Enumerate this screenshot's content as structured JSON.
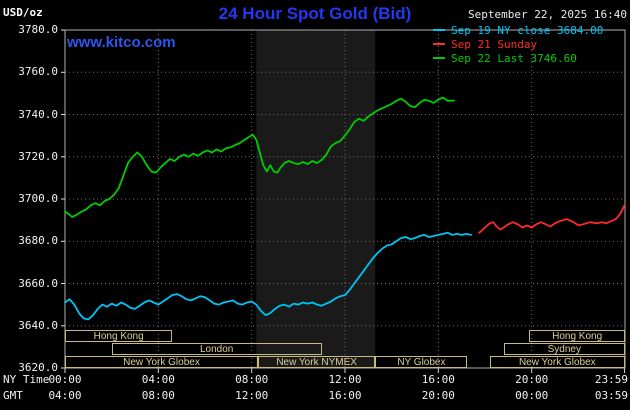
{
  "header": {
    "unit": "USD/oz",
    "title": "24 Hour Spot Gold (Bid)",
    "datetime": "September 22, 2025 16:40",
    "watermark": "www.kitco.com"
  },
  "axis": {
    "ny_label": "NY Time",
    "gmt_label": "GMT",
    "ny_ticks": [
      {
        "hour": 0,
        "label": "00:00"
      },
      {
        "hour": 4,
        "label": "04:00"
      },
      {
        "hour": 8,
        "label": "08:00"
      },
      {
        "hour": 12,
        "label": "12:00"
      },
      {
        "hour": 16,
        "label": "16:00"
      },
      {
        "hour": 20,
        "label": "20:00"
      },
      {
        "hour": 23.983,
        "label": "23:59"
      }
    ],
    "gmt_ticks": [
      {
        "hour": 0,
        "label": "04:00"
      },
      {
        "hour": 4,
        "label": "08:00"
      },
      {
        "hour": 8,
        "label": "12:00"
      },
      {
        "hour": 12,
        "label": "16:00"
      },
      {
        "hour": 16,
        "label": "20:00"
      },
      {
        "hour": 20,
        "label": "00:00"
      },
      {
        "hour": 23.983,
        "label": "03:59"
      }
    ]
  },
  "chart_data": {
    "type": "line",
    "title": "24 Hour Spot Gold (Bid)",
    "ylabel": "USD/oz",
    "xlabel": "NY Time (hours, 00:00-23:59)",
    "ylim": [
      3620,
      3780
    ],
    "ytick_step": 20,
    "yticks": [
      "3780.0",
      "3760.0",
      "3740.0",
      "3720.0",
      "3700.0",
      "3680.0",
      "3660.0",
      "3640.0",
      "3620.0"
    ],
    "grid": true,
    "grid_color": "#6e6e6e",
    "border_color": "#b0b0b0",
    "legend_position": "top-right",
    "background_band": {
      "start_hour": 8.2,
      "end_hour": 13.3,
      "color": "#1a1a1a"
    },
    "series": [
      {
        "id": "sep19",
        "name": "Sep 19 NY close 3684.00",
        "color": "#00c4f4",
        "points": [
          [
            0,
            3651
          ],
          [
            0.2,
            3652.5
          ],
          [
            0.4,
            3650
          ],
          [
            0.6,
            3646
          ],
          [
            0.8,
            3643.5
          ],
          [
            1,
            3643
          ],
          [
            1.2,
            3645
          ],
          [
            1.4,
            3648
          ],
          [
            1.6,
            3650
          ],
          [
            1.8,
            3649
          ],
          [
            2,
            3650.5
          ],
          [
            2.2,
            3649.5
          ],
          [
            2.4,
            3651
          ],
          [
            2.6,
            3650
          ],
          [
            2.8,
            3648.5
          ],
          [
            3,
            3648
          ],
          [
            3.2,
            3649.5
          ],
          [
            3.4,
            3651
          ],
          [
            3.6,
            3652
          ],
          [
            3.8,
            3651
          ],
          [
            4,
            3650
          ],
          [
            4.2,
            3651.5
          ],
          [
            4.4,
            3653
          ],
          [
            4.6,
            3654.5
          ],
          [
            4.8,
            3655
          ],
          [
            5,
            3654
          ],
          [
            5.2,
            3652.5
          ],
          [
            5.4,
            3652
          ],
          [
            5.6,
            3653
          ],
          [
            5.8,
            3654
          ],
          [
            6,
            3653.5
          ],
          [
            6.2,
            3652
          ],
          [
            6.4,
            3650.5
          ],
          [
            6.6,
            3650
          ],
          [
            6.8,
            3651
          ],
          [
            7,
            3651.5
          ],
          [
            7.2,
            3652
          ],
          [
            7.4,
            3650.5
          ],
          [
            7.6,
            3650
          ],
          [
            7.8,
            3651
          ],
          [
            8,
            3651.5
          ],
          [
            8.2,
            3650
          ],
          [
            8.4,
            3647
          ],
          [
            8.6,
            3645
          ],
          [
            8.8,
            3646
          ],
          [
            9,
            3648
          ],
          [
            9.2,
            3649.5
          ],
          [
            9.4,
            3650
          ],
          [
            9.6,
            3649
          ],
          [
            9.8,
            3650.5
          ],
          [
            10,
            3650
          ],
          [
            10.2,
            3651
          ],
          [
            10.4,
            3650.5
          ],
          [
            10.6,
            3651
          ],
          [
            10.8,
            3650
          ],
          [
            11,
            3649.5
          ],
          [
            11.2,
            3650.5
          ],
          [
            11.4,
            3651.5
          ],
          [
            11.6,
            3653
          ],
          [
            11.8,
            3654
          ],
          [
            12,
            3654.5
          ],
          [
            12.2,
            3657
          ],
          [
            12.4,
            3660
          ],
          [
            12.6,
            3663
          ],
          [
            12.8,
            3666
          ],
          [
            13,
            3669
          ],
          [
            13.2,
            3672
          ],
          [
            13.4,
            3674.5
          ],
          [
            13.6,
            3676.5
          ],
          [
            13.8,
            3678
          ],
          [
            14,
            3678.5
          ],
          [
            14.2,
            3680
          ],
          [
            14.4,
            3681.5
          ],
          [
            14.6,
            3682
          ],
          [
            14.8,
            3681
          ],
          [
            15,
            3681.5
          ],
          [
            15.2,
            3682.5
          ],
          [
            15.4,
            3683
          ],
          [
            15.6,
            3682
          ],
          [
            15.8,
            3682.5
          ],
          [
            16,
            3683
          ],
          [
            16.2,
            3683.5
          ],
          [
            16.4,
            3684
          ],
          [
            16.6,
            3683
          ],
          [
            16.8,
            3683.5
          ],
          [
            17,
            3683
          ],
          [
            17.2,
            3683.5
          ],
          [
            17.4,
            3683
          ]
        ]
      },
      {
        "id": "sep21",
        "name": "Sep 21 Sunday",
        "color": "#ff2a2a",
        "points": [
          [
            17.75,
            3684
          ],
          [
            17.9,
            3685.5
          ],
          [
            18.05,
            3687
          ],
          [
            18.2,
            3688.5
          ],
          [
            18.35,
            3689
          ],
          [
            18.5,
            3687
          ],
          [
            18.65,
            3685.5
          ],
          [
            18.8,
            3686.5
          ],
          [
            19,
            3688
          ],
          [
            19.2,
            3689
          ],
          [
            19.4,
            3688
          ],
          [
            19.6,
            3686.5
          ],
          [
            19.8,
            3687.5
          ],
          [
            20,
            3686.5
          ],
          [
            20.2,
            3688
          ],
          [
            20.4,
            3689
          ],
          [
            20.6,
            3688
          ],
          [
            20.8,
            3687
          ],
          [
            21,
            3688.5
          ],
          [
            21.2,
            3689.5
          ],
          [
            21.5,
            3690.5
          ],
          [
            21.8,
            3689
          ],
          [
            22,
            3687.5
          ],
          [
            22.2,
            3688
          ],
          [
            22.5,
            3689
          ],
          [
            22.8,
            3688.5
          ],
          [
            23,
            3689
          ],
          [
            23.2,
            3688.5
          ],
          [
            23.4,
            3689.5
          ],
          [
            23.6,
            3690.5
          ],
          [
            23.8,
            3693
          ],
          [
            23.98,
            3697
          ]
        ]
      },
      {
        "id": "sep22",
        "name": "Sep 22 Last 3746.60",
        "color": "#00cc00",
        "points": [
          [
            0,
            3694
          ],
          [
            0.15,
            3693
          ],
          [
            0.3,
            3691.5
          ],
          [
            0.5,
            3692.5
          ],
          [
            0.7,
            3694
          ],
          [
            0.9,
            3695
          ],
          [
            1.1,
            3697
          ],
          [
            1.3,
            3698
          ],
          [
            1.5,
            3697
          ],
          [
            1.7,
            3699
          ],
          [
            1.9,
            3700
          ],
          [
            2.1,
            3702
          ],
          [
            2.3,
            3705
          ],
          [
            2.5,
            3711
          ],
          [
            2.7,
            3717
          ],
          [
            2.9,
            3720
          ],
          [
            3.1,
            3722
          ],
          [
            3.3,
            3720
          ],
          [
            3.5,
            3716
          ],
          [
            3.7,
            3713
          ],
          [
            3.9,
            3712.5
          ],
          [
            4.1,
            3715
          ],
          [
            4.3,
            3717
          ],
          [
            4.5,
            3719
          ],
          [
            4.7,
            3718
          ],
          [
            4.9,
            3720
          ],
          [
            5.1,
            3721
          ],
          [
            5.3,
            3720
          ],
          [
            5.5,
            3721.5
          ],
          [
            5.7,
            3720.5
          ],
          [
            5.9,
            3722
          ],
          [
            6.1,
            3723
          ],
          [
            6.3,
            3722
          ],
          [
            6.5,
            3723.5
          ],
          [
            6.7,
            3722.5
          ],
          [
            6.9,
            3724
          ],
          [
            7.1,
            3724.5
          ],
          [
            7.3,
            3725.5
          ],
          [
            7.5,
            3726.5
          ],
          [
            7.7,
            3728
          ],
          [
            7.9,
            3729.5
          ],
          [
            8.05,
            3730.5
          ],
          [
            8.2,
            3728
          ],
          [
            8.35,
            3722
          ],
          [
            8.5,
            3716
          ],
          [
            8.65,
            3713
          ],
          [
            8.8,
            3716
          ],
          [
            8.95,
            3713
          ],
          [
            9.1,
            3712.5
          ],
          [
            9.25,
            3715
          ],
          [
            9.4,
            3717
          ],
          [
            9.6,
            3718
          ],
          [
            9.8,
            3717
          ],
          [
            10,
            3716.5
          ],
          [
            10.2,
            3717.5
          ],
          [
            10.4,
            3716.5
          ],
          [
            10.6,
            3718
          ],
          [
            10.8,
            3717
          ],
          [
            11,
            3718.5
          ],
          [
            11.2,
            3721
          ],
          [
            11.4,
            3725
          ],
          [
            11.6,
            3726.5
          ],
          [
            11.8,
            3727.5
          ],
          [
            12,
            3730
          ],
          [
            12.2,
            3733
          ],
          [
            12.4,
            3736.5
          ],
          [
            12.6,
            3738
          ],
          [
            12.8,
            3737
          ],
          [
            13,
            3739
          ],
          [
            13.2,
            3740.5
          ],
          [
            13.4,
            3742
          ],
          [
            13.6,
            3743
          ],
          [
            13.8,
            3744
          ],
          [
            14,
            3745
          ],
          [
            14.2,
            3746.5
          ],
          [
            14.4,
            3747.5
          ],
          [
            14.6,
            3746
          ],
          [
            14.8,
            3744
          ],
          [
            15,
            3743.5
          ],
          [
            15.2,
            3745.5
          ],
          [
            15.4,
            3747
          ],
          [
            15.6,
            3746.5
          ],
          [
            15.8,
            3745.5
          ],
          [
            16,
            3747
          ],
          [
            16.2,
            3748
          ],
          [
            16.4,
            3746.5
          ],
          [
            16.67,
            3746.6
          ]
        ]
      }
    ],
    "sessions": [
      {
        "label": "Hong Kong",
        "row": 0,
        "start_hour": 0,
        "end_hour": 4.6
      },
      {
        "label": "Hong Kong",
        "row": 0,
        "start_hour": 19.9,
        "end_hour": 24
      },
      {
        "label": "London",
        "row": 1,
        "start_hour": 2,
        "end_hour": 11
      },
      {
        "label": "Sydney",
        "row": 1,
        "start_hour": 18.8,
        "end_hour": 24
      },
      {
        "label": "New York Globex",
        "row": 2,
        "start_hour": 0,
        "end_hour": 8.27
      },
      {
        "label": "New York NYMEX",
        "row": 2,
        "start_hour": 8.27,
        "end_hour": 13.3
      },
      {
        "label": "NY Globex",
        "row": 2,
        "start_hour": 13.3,
        "end_hour": 17.25
      },
      {
        "label": "New York Globex",
        "row": 2,
        "start_hour": 18.2,
        "end_hour": 24
      }
    ]
  }
}
